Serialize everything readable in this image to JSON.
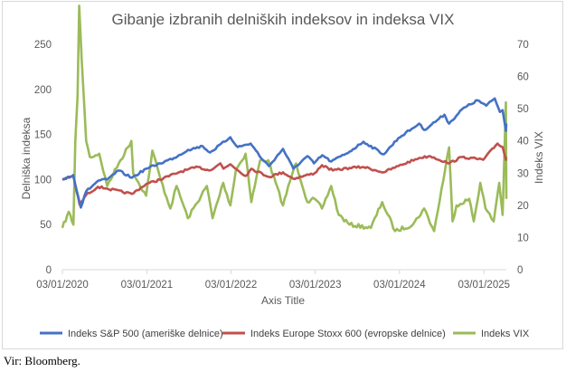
{
  "source_note": "Vir: Bloomberg.",
  "colors": {
    "sp500": "#4472C4",
    "stoxx": "#C0504D",
    "vix": "#9BBB59",
    "axis": "#d9d9d9",
    "text": "#595959"
  },
  "chart_data": {
    "type": "line",
    "title": "Gibanje izbranih delniških indeksov in indeksa VIX",
    "xlabel": "Axis Title",
    "ylabel": "Delniška indeksa",
    "y2label": "Indeks VIX",
    "ylim": [
      0,
      250
    ],
    "y2lim": [
      0,
      70
    ],
    "yticks": [
      "0",
      "50",
      "100",
      "150",
      "200",
      "250"
    ],
    "y2ticks": [
      "0",
      "10",
      "20",
      "30",
      "40",
      "50",
      "60",
      "70"
    ],
    "xticks": [
      "03/01/2020",
      "03/01/2021",
      "03/01/2022",
      "03/01/2023",
      "03/01/2024",
      "03/01/2025"
    ],
    "xlim": [
      "2020-01-03",
      "2025-04-10"
    ],
    "grid": false,
    "legend_position": "bottom",
    "series": [
      {
        "name": "Indeks S&P 500 (ameriške delnice)",
        "axis": "left",
        "x": [
          "2020-01-03",
          "2020-02-19",
          "2020-03-23",
          "2020-04-15",
          "2020-06-08",
          "2020-07-15",
          "2020-09-02",
          "2020-10-30",
          "2020-12-31",
          "2021-03-01",
          "2021-05-01",
          "2021-07-01",
          "2021-09-02",
          "2021-10-04",
          "2021-12-31",
          "2022-02-01",
          "2022-03-29",
          "2022-05-20",
          "2022-06-16",
          "2022-08-16",
          "2022-09-30",
          "2022-11-30",
          "2022-12-28",
          "2023-02-02",
          "2023-03-13",
          "2023-06-01",
          "2023-07-31",
          "2023-10-27",
          "2023-12-29",
          "2024-03-28",
          "2024-04-19",
          "2024-07-16",
          "2024-08-05",
          "2024-09-30",
          "2024-12-06",
          "2025-01-13",
          "2025-02-19",
          "2025-03-13",
          "2025-03-25",
          "2025-04-08",
          "2025-04-10"
        ],
        "values": [
          100,
          105,
          69,
          87,
          99,
          100,
          110,
          102,
          112,
          118,
          124,
          133,
          137,
          130,
          147,
          136,
          140,
          122,
          115,
          134,
          112,
          126,
          118,
          127,
          120,
          131,
          142,
          128,
          146,
          162,
          155,
          172,
          162,
          178,
          188,
          182,
          190,
          175,
          177,
          154,
          162
        ]
      },
      {
        "name": "Indeks Europe Stoxx 600 (evropske delnice)",
        "axis": "left",
        "x": [
          "2020-01-03",
          "2020-02-19",
          "2020-03-18",
          "2020-04-15",
          "2020-06-05",
          "2020-07-15",
          "2020-10-30",
          "2020-12-31",
          "2021-03-01",
          "2021-06-01",
          "2021-08-13",
          "2021-09-30",
          "2021-11-17",
          "2021-12-01",
          "2021-12-31",
          "2022-03-07",
          "2022-04-01",
          "2022-06-16",
          "2022-08-16",
          "2022-09-29",
          "2022-12-31",
          "2023-02-01",
          "2023-03-20",
          "2023-06-01",
          "2023-07-31",
          "2023-10-27",
          "2023-12-29",
          "2024-03-28",
          "2024-05-15",
          "2024-08-05",
          "2024-09-30",
          "2024-12-31",
          "2025-03-03",
          "2025-03-25",
          "2025-04-08",
          "2025-04-10"
        ],
        "values": [
          100,
          104,
          72,
          83,
          92,
          90,
          84,
          95,
          100,
          109,
          114,
          110,
          118,
          112,
          117,
          104,
          112,
          103,
          108,
          101,
          107,
          116,
          110,
          113,
          114,
          108,
          115,
          124,
          126,
          118,
          125,
          122,
          140,
          136,
          122,
          125
        ]
      },
      {
        "name": "Indeks VIX",
        "axis": "right",
        "x": [
          "2020-01-03",
          "2020-01-31",
          "2020-02-20",
          "2020-02-28",
          "2020-03-09",
          "2020-03-16",
          "2020-03-27",
          "2020-04-15",
          "2020-05-01",
          "2020-06-11",
          "2020-07-15",
          "2020-09-03",
          "2020-10-28",
          "2020-11-05",
          "2020-12-31",
          "2021-01-27",
          "2021-03-04",
          "2021-04-15",
          "2021-05-12",
          "2021-06-30",
          "2021-09-20",
          "2021-10-15",
          "2021-11-30",
          "2021-12-31",
          "2022-01-24",
          "2022-03-07",
          "2022-04-01",
          "2022-05-09",
          "2022-06-13",
          "2022-08-16",
          "2022-09-30",
          "2022-10-12",
          "2022-11-30",
          "2022-12-31",
          "2023-02-01",
          "2023-03-13",
          "2023-04-15",
          "2023-06-01",
          "2023-09-01",
          "2023-10-20",
          "2023-12-15",
          "2024-03-01",
          "2024-04-19",
          "2024-06-01",
          "2024-08-05",
          "2024-08-20",
          "2024-09-06",
          "2024-10-31",
          "2024-11-20",
          "2024-12-18",
          "2025-01-10",
          "2025-02-14",
          "2025-03-10",
          "2025-03-25",
          "2025-04-08",
          "2025-04-10"
        ],
        "values": [
          13,
          18,
          14,
          40,
          54,
          82,
          65,
          40,
          35,
          36,
          26,
          33,
          40,
          30,
          23,
          37,
          28,
          19,
          26,
          16,
          26,
          16,
          27,
          20,
          31,
          36,
          21,
          34,
          34,
          20,
          31,
          33,
          21,
          22,
          19,
          26,
          17,
          14,
          13,
          21,
          12,
          14,
          19,
          12,
          38,
          15,
          20,
          22,
          15,
          27,
          19,
          15,
          27,
          17,
          52,
          22
        ]
      }
    ]
  }
}
